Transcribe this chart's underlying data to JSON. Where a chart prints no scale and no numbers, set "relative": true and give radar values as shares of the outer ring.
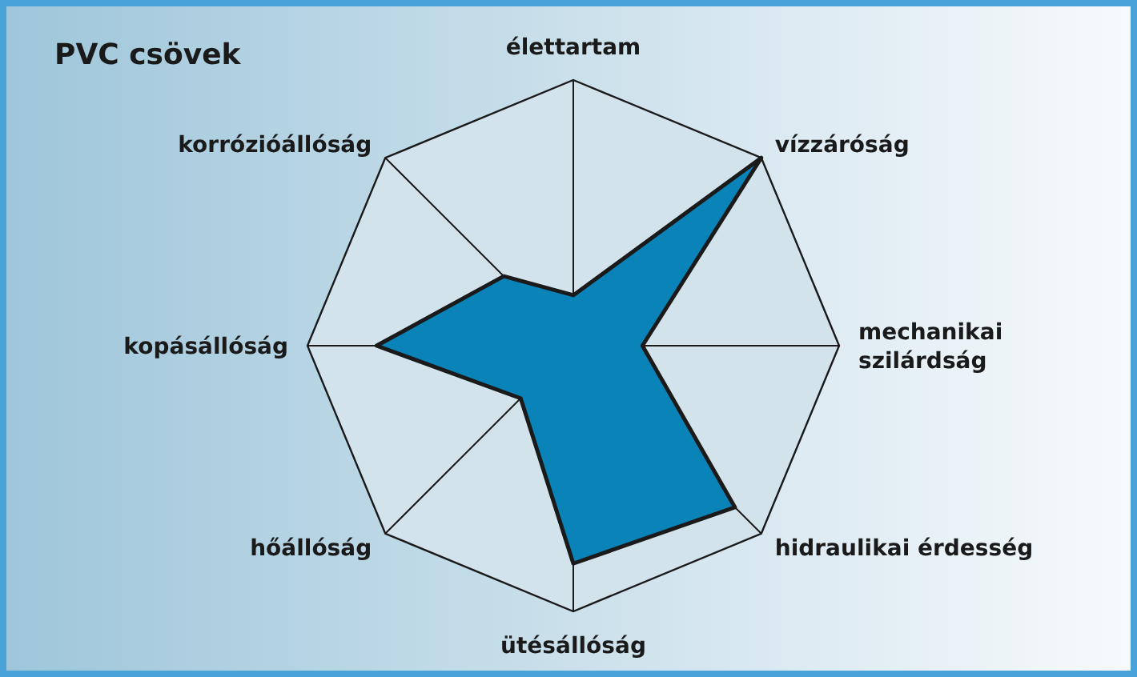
{
  "chart_data": {
    "type": "radar",
    "title": "PVC csövek",
    "relative": true,
    "grid": true,
    "categories": [
      "élettartam",
      "vízzáróság",
      "mechanikai\nszilárdság",
      "hidraulikai érdesség",
      "ütésállóság",
      "hőállóság",
      "kopásállóság",
      "korrózióállóság"
    ],
    "series": [
      {
        "color": "#0a83b9",
        "values": [
          0.19,
          1,
          0.26,
          0.86,
          0.82,
          0.28,
          0.74,
          0.37
        ]
      }
    ]
  }
}
